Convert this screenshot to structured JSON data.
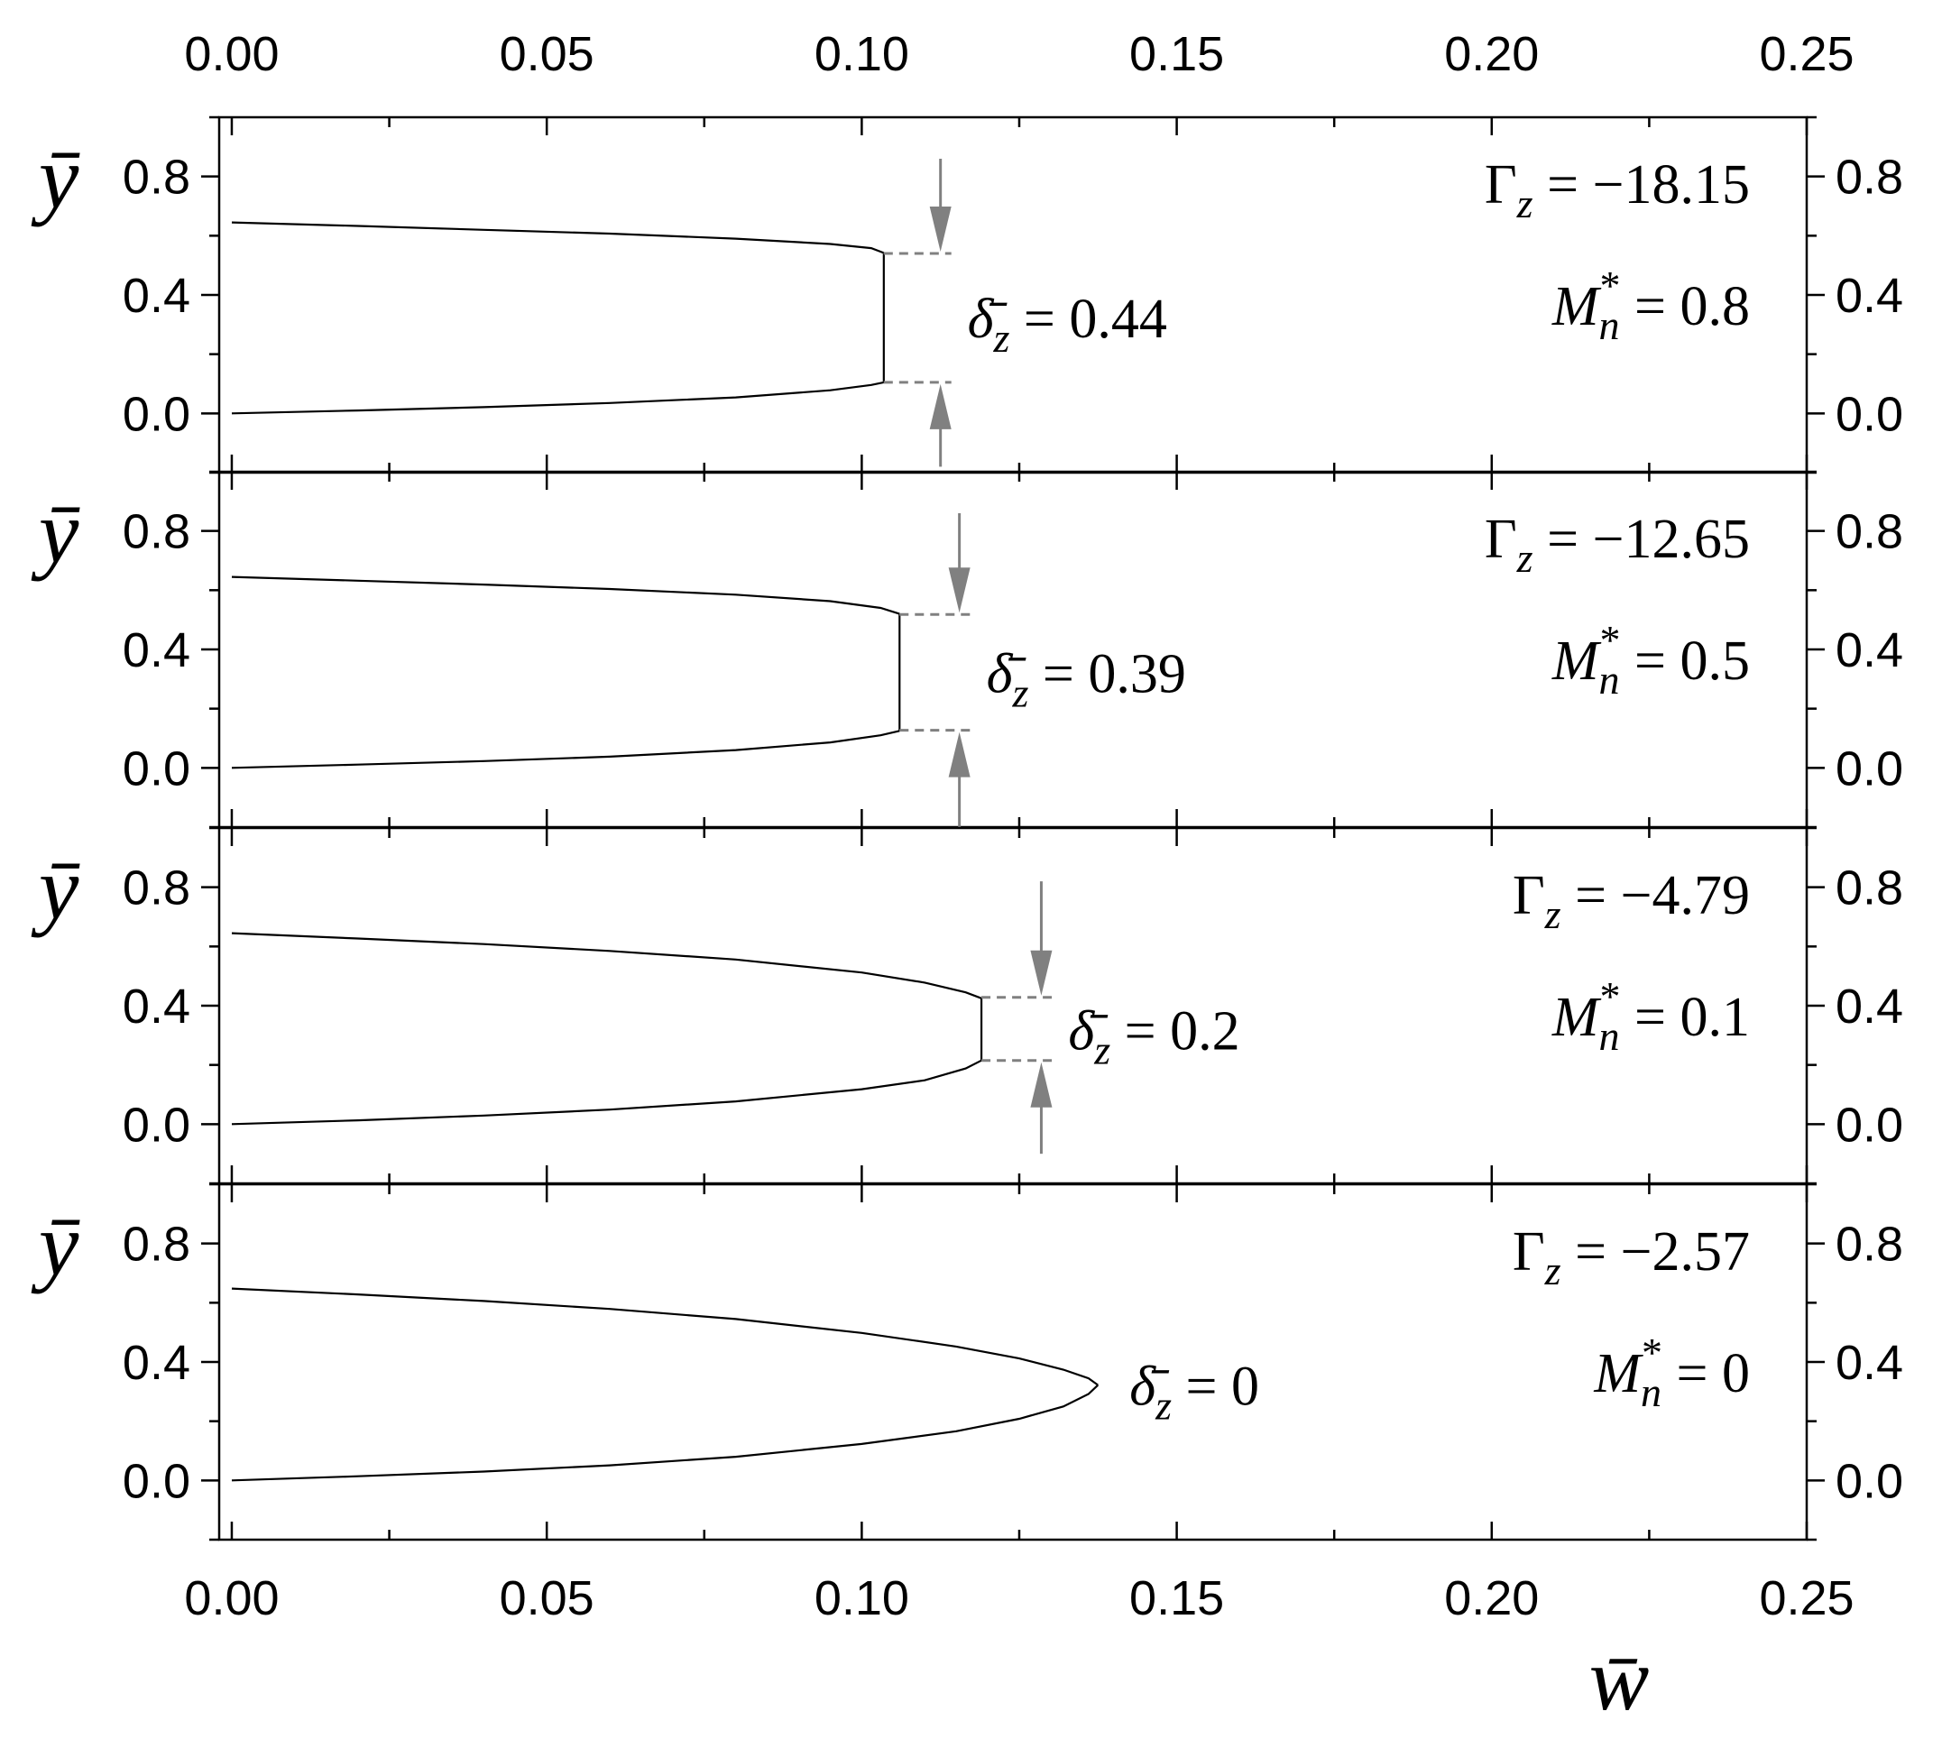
{
  "x_axis": {
    "label": "w̄",
    "ticks": [
      0,
      0.05,
      0.1,
      0.15,
      0.2,
      0.25
    ],
    "tick_labels": [
      "0.00",
      "0.05",
      "0.10",
      "0.15",
      "0.20",
      "0.25"
    ]
  },
  "y_axis": {
    "label": "ȳ",
    "ticks": [
      0,
      0.4,
      0.8
    ],
    "tick_labels": [
      "0.0",
      "0.4",
      "0.8"
    ]
  },
  "chart_data": {
    "type": "line",
    "xlabel": "w̄",
    "ylabel": "ȳ",
    "xlim": [
      -0.002,
      0.25
    ],
    "ylim": [
      -0.2,
      1.0
    ],
    "x_major_ticks": [
      0,
      0.05,
      0.1,
      0.15,
      0.2,
      0.25
    ],
    "x_minor_ticks": [
      0.025,
      0.075,
      0.125,
      0.175,
      0.225
    ],
    "y_major_ticks": [
      0,
      0.4,
      0.8
    ],
    "y_minor_ticks": [
      -0.2,
      0.2,
      0.6,
      1.0
    ],
    "panels": [
      {
        "gamma_label": "Γz = −18.15",
        "m_label": "Mn* = 0.8",
        "delta_label": "δ̄z = 0.44",
        "gamma": -18.15,
        "m_n_star": 0.8,
        "delta_z": 0.44,
        "upper_branch": [
          [
            0,
            0.645
          ],
          [
            0.02,
            0.633
          ],
          [
            0.04,
            0.62
          ],
          [
            0.06,
            0.607
          ],
          [
            0.08,
            0.59
          ],
          [
            0.095,
            0.572
          ],
          [
            0.1015,
            0.558
          ],
          [
            0.1035,
            0.542
          ]
        ],
        "lower_branch": [
          [
            0,
            0.0
          ],
          [
            0.02,
            0.01
          ],
          [
            0.04,
            0.021
          ],
          [
            0.06,
            0.035
          ],
          [
            0.08,
            0.054
          ],
          [
            0.095,
            0.078
          ],
          [
            0.1015,
            0.096
          ],
          [
            0.1035,
            0.105
          ]
        ],
        "jump_x": 0.1035,
        "guide_y": [
          0.54,
          0.105
        ],
        "arrow_x": 0.1125,
        "arrow_top_y": 0.86,
        "arrow_bottom_y": -0.18
      },
      {
        "gamma_label": "Γz = −12.65",
        "m_label": "Mn* = 0.5",
        "delta_label": "δ̄z = 0.39",
        "gamma": -12.65,
        "m_n_star": 0.5,
        "delta_z": 0.39,
        "upper_branch": [
          [
            0,
            0.645
          ],
          [
            0.02,
            0.632
          ],
          [
            0.04,
            0.619
          ],
          [
            0.06,
            0.604
          ],
          [
            0.08,
            0.585
          ],
          [
            0.095,
            0.563
          ],
          [
            0.103,
            0.54
          ],
          [
            0.106,
            0.52
          ]
        ],
        "lower_branch": [
          [
            0,
            0.0
          ],
          [
            0.02,
            0.011
          ],
          [
            0.04,
            0.023
          ],
          [
            0.06,
            0.038
          ],
          [
            0.08,
            0.06
          ],
          [
            0.095,
            0.086
          ],
          [
            0.103,
            0.11
          ],
          [
            0.106,
            0.125
          ]
        ],
        "jump_x": 0.106,
        "guide_y": [
          0.518,
          0.127
        ],
        "arrow_x": 0.1155,
        "arrow_top_y": 0.86,
        "arrow_bottom_y": -0.2
      },
      {
        "gamma_label": "Γz = −4.79",
        "m_label": "Mn* = 0.1",
        "delta_label": "δ̄z = 0.2",
        "gamma": -4.79,
        "m_n_star": 0.1,
        "delta_z": 0.2,
        "upper_branch": [
          [
            0,
            0.645
          ],
          [
            0.02,
            0.627
          ],
          [
            0.04,
            0.608
          ],
          [
            0.06,
            0.585
          ],
          [
            0.08,
            0.556
          ],
          [
            0.1,
            0.512
          ],
          [
            0.11,
            0.478
          ],
          [
            0.1165,
            0.445
          ],
          [
            0.119,
            0.425
          ]
        ],
        "lower_branch": [
          [
            0,
            0.0
          ],
          [
            0.02,
            0.013
          ],
          [
            0.04,
            0.029
          ],
          [
            0.06,
            0.049
          ],
          [
            0.08,
            0.077
          ],
          [
            0.1,
            0.118
          ],
          [
            0.11,
            0.148
          ],
          [
            0.1165,
            0.188
          ],
          [
            0.119,
            0.215
          ]
        ],
        "jump_x": 0.119,
        "guide_y": [
          0.428,
          0.215
        ],
        "arrow_x": 0.1285,
        "arrow_top_y": 0.82,
        "arrow_bottom_y": -0.1
      },
      {
        "gamma_label": "Γz = −2.57",
        "m_label": "Mn* = 0",
        "delta_label": "δ̄z = 0",
        "gamma": -2.57,
        "m_n_star": 0,
        "delta_z": 0,
        "upper_branch": [
          [
            0,
            0.648
          ],
          [
            0.02,
            0.628
          ],
          [
            0.04,
            0.606
          ],
          [
            0.06,
            0.579
          ],
          [
            0.08,
            0.545
          ],
          [
            0.1,
            0.498
          ],
          [
            0.115,
            0.452
          ],
          [
            0.125,
            0.412
          ],
          [
            0.132,
            0.374
          ],
          [
            0.136,
            0.345
          ],
          [
            0.1375,
            0.322
          ]
        ],
        "lower_branch": [
          [
            0,
            0.0
          ],
          [
            0.02,
            0.014
          ],
          [
            0.04,
            0.03
          ],
          [
            0.06,
            0.051
          ],
          [
            0.08,
            0.08
          ],
          [
            0.1,
            0.123
          ],
          [
            0.115,
            0.166
          ],
          [
            0.125,
            0.208
          ],
          [
            0.132,
            0.25
          ],
          [
            0.136,
            0.292
          ],
          [
            0.1375,
            0.322
          ]
        ],
        "jump_x": null,
        "guide_y": null,
        "arrow_x": null
      }
    ]
  }
}
